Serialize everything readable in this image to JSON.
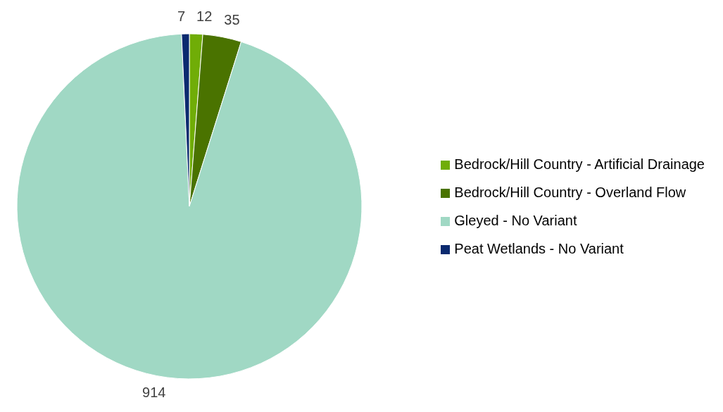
{
  "chart_data": {
    "type": "pie",
    "categories": [
      "Bedrock/Hill Country - Artificial Drainage",
      "Bedrock/Hill Country - Overland Flow",
      "Gleyed - No Variant",
      "Peat Wetlands - No Variant"
    ],
    "values": [
      12,
      35,
      914,
      7
    ],
    "colors": [
      "#70ad07",
      "#4a7300",
      "#a0d8c4",
      "#0b2a6f"
    ],
    "data_labels": true,
    "legend": "right"
  }
}
